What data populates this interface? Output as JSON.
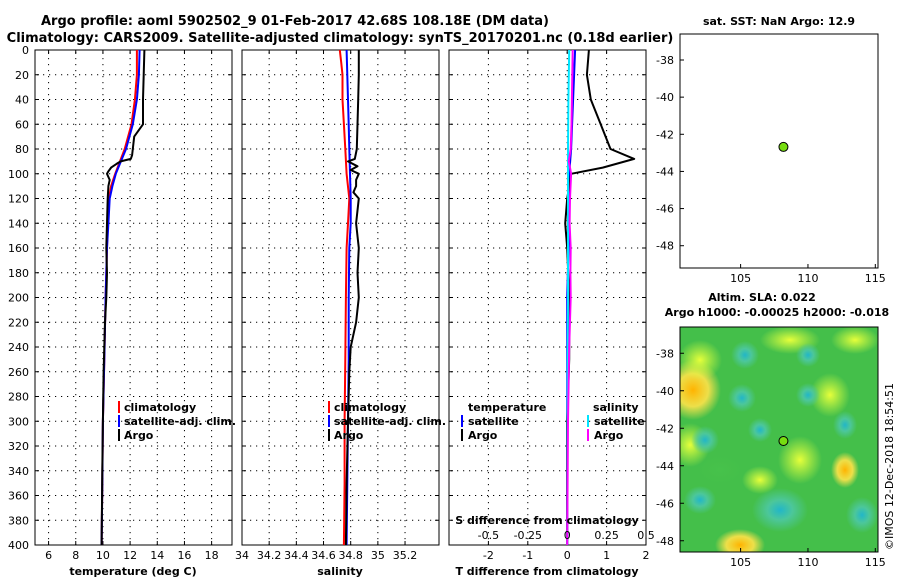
{
  "title": {
    "line1": "Argo profile: aoml 5902502_9 01-Feb-2017 42.68S 108.18E (DM data)",
    "line2": "Climatology: CARS2009. Satellite-adjusted climatology: synTS_20170201.nc (0.18d earlier)"
  },
  "footer": "©IMOS 12-Dec-2018 18:54:51",
  "colors": {
    "climatology": "#ff0000",
    "satellite": "#0000ff",
    "argo": "#000000",
    "sal_satellite": "#00e5ff",
    "sal_argo": "#ff00ff",
    "marker": "#77dd11"
  },
  "chart_data": [
    {
      "type": "line",
      "id": "temperature",
      "xlabel": "temperature (deg C)",
      "ylabel": "",
      "xlim": [
        5,
        19.5
      ],
      "ylim": [
        400,
        0
      ],
      "xticks": [
        6,
        8,
        10,
        12,
        14,
        16,
        18
      ],
      "yticks": [
        0,
        20,
        40,
        60,
        80,
        100,
        120,
        140,
        160,
        180,
        200,
        220,
        240,
        260,
        280,
        300,
        320,
        340,
        360,
        380,
        400
      ],
      "legend": {
        "position": "middle-right",
        "entries": [
          "climatology",
          "satellite-adj. clim.",
          "Argo"
        ]
      },
      "series": [
        {
          "name": "climatology",
          "color": "#ff0000",
          "depth": [
            0,
            20,
            40,
            60,
            80,
            100,
            110,
            120,
            140,
            160,
            200,
            250,
            300,
            350,
            400
          ],
          "values": [
            12.5,
            12.5,
            12.35,
            12.1,
            11.6,
            10.9,
            10.6,
            10.45,
            10.35,
            10.3,
            10.2,
            10.1,
            10.0,
            9.95,
            9.9
          ]
        },
        {
          "name": "satellite-adj. clim.",
          "color": "#0000ff",
          "depth": [
            0,
            20,
            40,
            60,
            80,
            100,
            110,
            120,
            140,
            160,
            200,
            250,
            300,
            350,
            400
          ],
          "values": [
            12.7,
            12.65,
            12.5,
            12.2,
            11.7,
            10.95,
            10.7,
            10.5,
            10.4,
            10.3,
            10.2,
            10.1,
            10.0,
            9.95,
            9.9
          ]
        },
        {
          "name": "Argo",
          "color": "#000000",
          "depth": [
            0,
            20,
            40,
            60,
            70,
            85,
            88,
            90,
            92,
            95,
            98,
            100,
            105,
            110,
            120,
            140,
            160,
            180,
            200,
            220,
            240,
            260,
            300,
            340,
            400
          ],
          "values": [
            13.05,
            13.0,
            12.95,
            12.95,
            12.3,
            12.15,
            12.05,
            11.3,
            11.0,
            10.6,
            10.4,
            10.3,
            10.5,
            10.4,
            10.35,
            10.3,
            10.25,
            10.3,
            10.25,
            10.15,
            10.1,
            10.05,
            10.0,
            9.95,
            9.9
          ]
        }
      ]
    },
    {
      "type": "line",
      "id": "salinity",
      "xlabel": "salinity",
      "ylabel": "",
      "xlim": [
        34.0,
        35.45
      ],
      "ylim": [
        400,
        0
      ],
      "xticks": [
        34,
        34.2,
        34.4,
        34.6,
        34.8,
        35,
        35.2
      ],
      "legend": {
        "position": "middle-right",
        "entries": [
          "climatology",
          "satellite-adj. clim.",
          "Argo"
        ]
      },
      "series": [
        {
          "name": "climatology",
          "color": "#ff0000",
          "depth": [
            0,
            10,
            20,
            40,
            60,
            80,
            100,
            120,
            140,
            160,
            200,
            250,
            300,
            350,
            400
          ],
          "values": [
            34.72,
            34.73,
            34.74,
            34.74,
            34.75,
            34.76,
            34.77,
            34.79,
            34.78,
            34.77,
            34.765,
            34.76,
            34.755,
            34.755,
            34.75
          ]
        },
        {
          "name": "satellite-adj. clim.",
          "color": "#0000ff",
          "depth": [
            0,
            20,
            40,
            60,
            80,
            100,
            120,
            140,
            160,
            200,
            250,
            300,
            350,
            400
          ],
          "values": [
            34.77,
            34.775,
            34.78,
            34.785,
            34.79,
            34.795,
            34.8,
            34.8,
            34.79,
            34.785,
            34.785,
            34.78,
            34.775,
            34.77
          ]
        },
        {
          "name": "Argo",
          "color": "#000000",
          "depth": [
            0,
            20,
            40,
            60,
            80,
            88,
            90,
            94,
            97,
            100,
            105,
            110,
            115,
            120,
            140,
            160,
            180,
            200,
            220,
            240,
            260,
            300,
            350,
            400
          ],
          "values": [
            34.86,
            34.86,
            34.855,
            34.85,
            34.845,
            34.83,
            34.78,
            34.85,
            34.8,
            34.86,
            34.84,
            34.84,
            34.82,
            34.86,
            34.84,
            34.86,
            34.85,
            34.86,
            34.84,
            34.8,
            34.79,
            34.78,
            34.77,
            34.765
          ]
        }
      ]
    },
    {
      "type": "line",
      "id": "difference",
      "xlabel": "T difference from climatology",
      "xlabel_top": "S difference from climatology",
      "ylabel": "",
      "xlim": [
        -3,
        2
      ],
      "ylim": [
        400,
        0
      ],
      "xticks": [
        -2,
        -1,
        0,
        1,
        2
      ],
      "xticks_top": [
        "-0.5",
        "-0.25",
        "0",
        "0.25",
        "0.5"
      ],
      "legend": {
        "position": "middle",
        "temperature_title": "temperature",
        "salinity_title": "salinity",
        "entries": [
          "satellite",
          "Argo",
          "satellite",
          "Argo"
        ]
      },
      "series": [
        {
          "name": "temperature satellite",
          "color": "#0000ff",
          "depth": [
            0,
            40,
            80,
            100,
            140,
            200,
            260,
            300,
            400
          ],
          "values": [
            0.2,
            0.15,
            0.1,
            0.05,
            0.05,
            0.0,
            0.0,
            0.0,
            0.0
          ]
        },
        {
          "name": "temperature Argo",
          "color": "#000000",
          "depth": [
            0,
            20,
            40,
            60,
            80,
            88,
            95,
            100,
            110,
            120,
            140,
            160,
            200,
            250,
            300,
            350,
            400
          ],
          "values": [
            0.55,
            0.5,
            0.6,
            0.85,
            1.1,
            1.7,
            0.9,
            0.1,
            0.05,
            0.0,
            -0.05,
            0.0,
            0.05,
            0.05,
            0.0,
            0.0,
            0.0
          ]
        },
        {
          "name": "salinity satellite",
          "color": "#00e5ff",
          "depth": [
            0,
            40,
            80,
            120,
            160,
            200,
            260,
            300,
            400
          ],
          "values": [
            0.05,
            0.03,
            0.02,
            0.02,
            0.02,
            0.02,
            0.01,
            0.01,
            0.0
          ]
        },
        {
          "name": "salinity Argo",
          "color": "#ff00ff",
          "depth": [
            0,
            20,
            40,
            60,
            80,
            90,
            95,
            100,
            120,
            140,
            160,
            180,
            200,
            240,
            300,
            400
          ],
          "values": [
            0.14,
            0.13,
            0.12,
            0.11,
            0.09,
            0.04,
            0.07,
            0.1,
            0.07,
            0.06,
            0.09,
            0.08,
            0.09,
            0.05,
            0.02,
            0.0
          ]
        }
      ]
    },
    {
      "type": "scatter",
      "id": "sst-map",
      "title": "sat. SST: NaN Argo: 12.9",
      "xlim": [
        100.5,
        115.2
      ],
      "ylim": [
        -49.2,
        -36.6
      ],
      "xticks": [
        105,
        110,
        115
      ],
      "yticks": [
        -38,
        -40,
        -42,
        -44,
        -46,
        -48
      ],
      "points": [
        {
          "lon": 108.18,
          "lat": -42.68
        }
      ]
    },
    {
      "type": "heatmap",
      "id": "sla-map",
      "title": "Altim. SLA: 0.022",
      "subtitle": "Argo h1000: -0.00025 h2000: -0.018",
      "xlim": [
        100.5,
        115.2
      ],
      "ylim": [
        -48.6,
        -36.6
      ],
      "xticks": [
        105,
        110,
        115
      ],
      "yticks": [
        -38,
        -40,
        -42,
        -44,
        -46,
        -48
      ],
      "points": [
        {
          "lon": 108.18,
          "lat": -42.68
        }
      ]
    }
  ]
}
